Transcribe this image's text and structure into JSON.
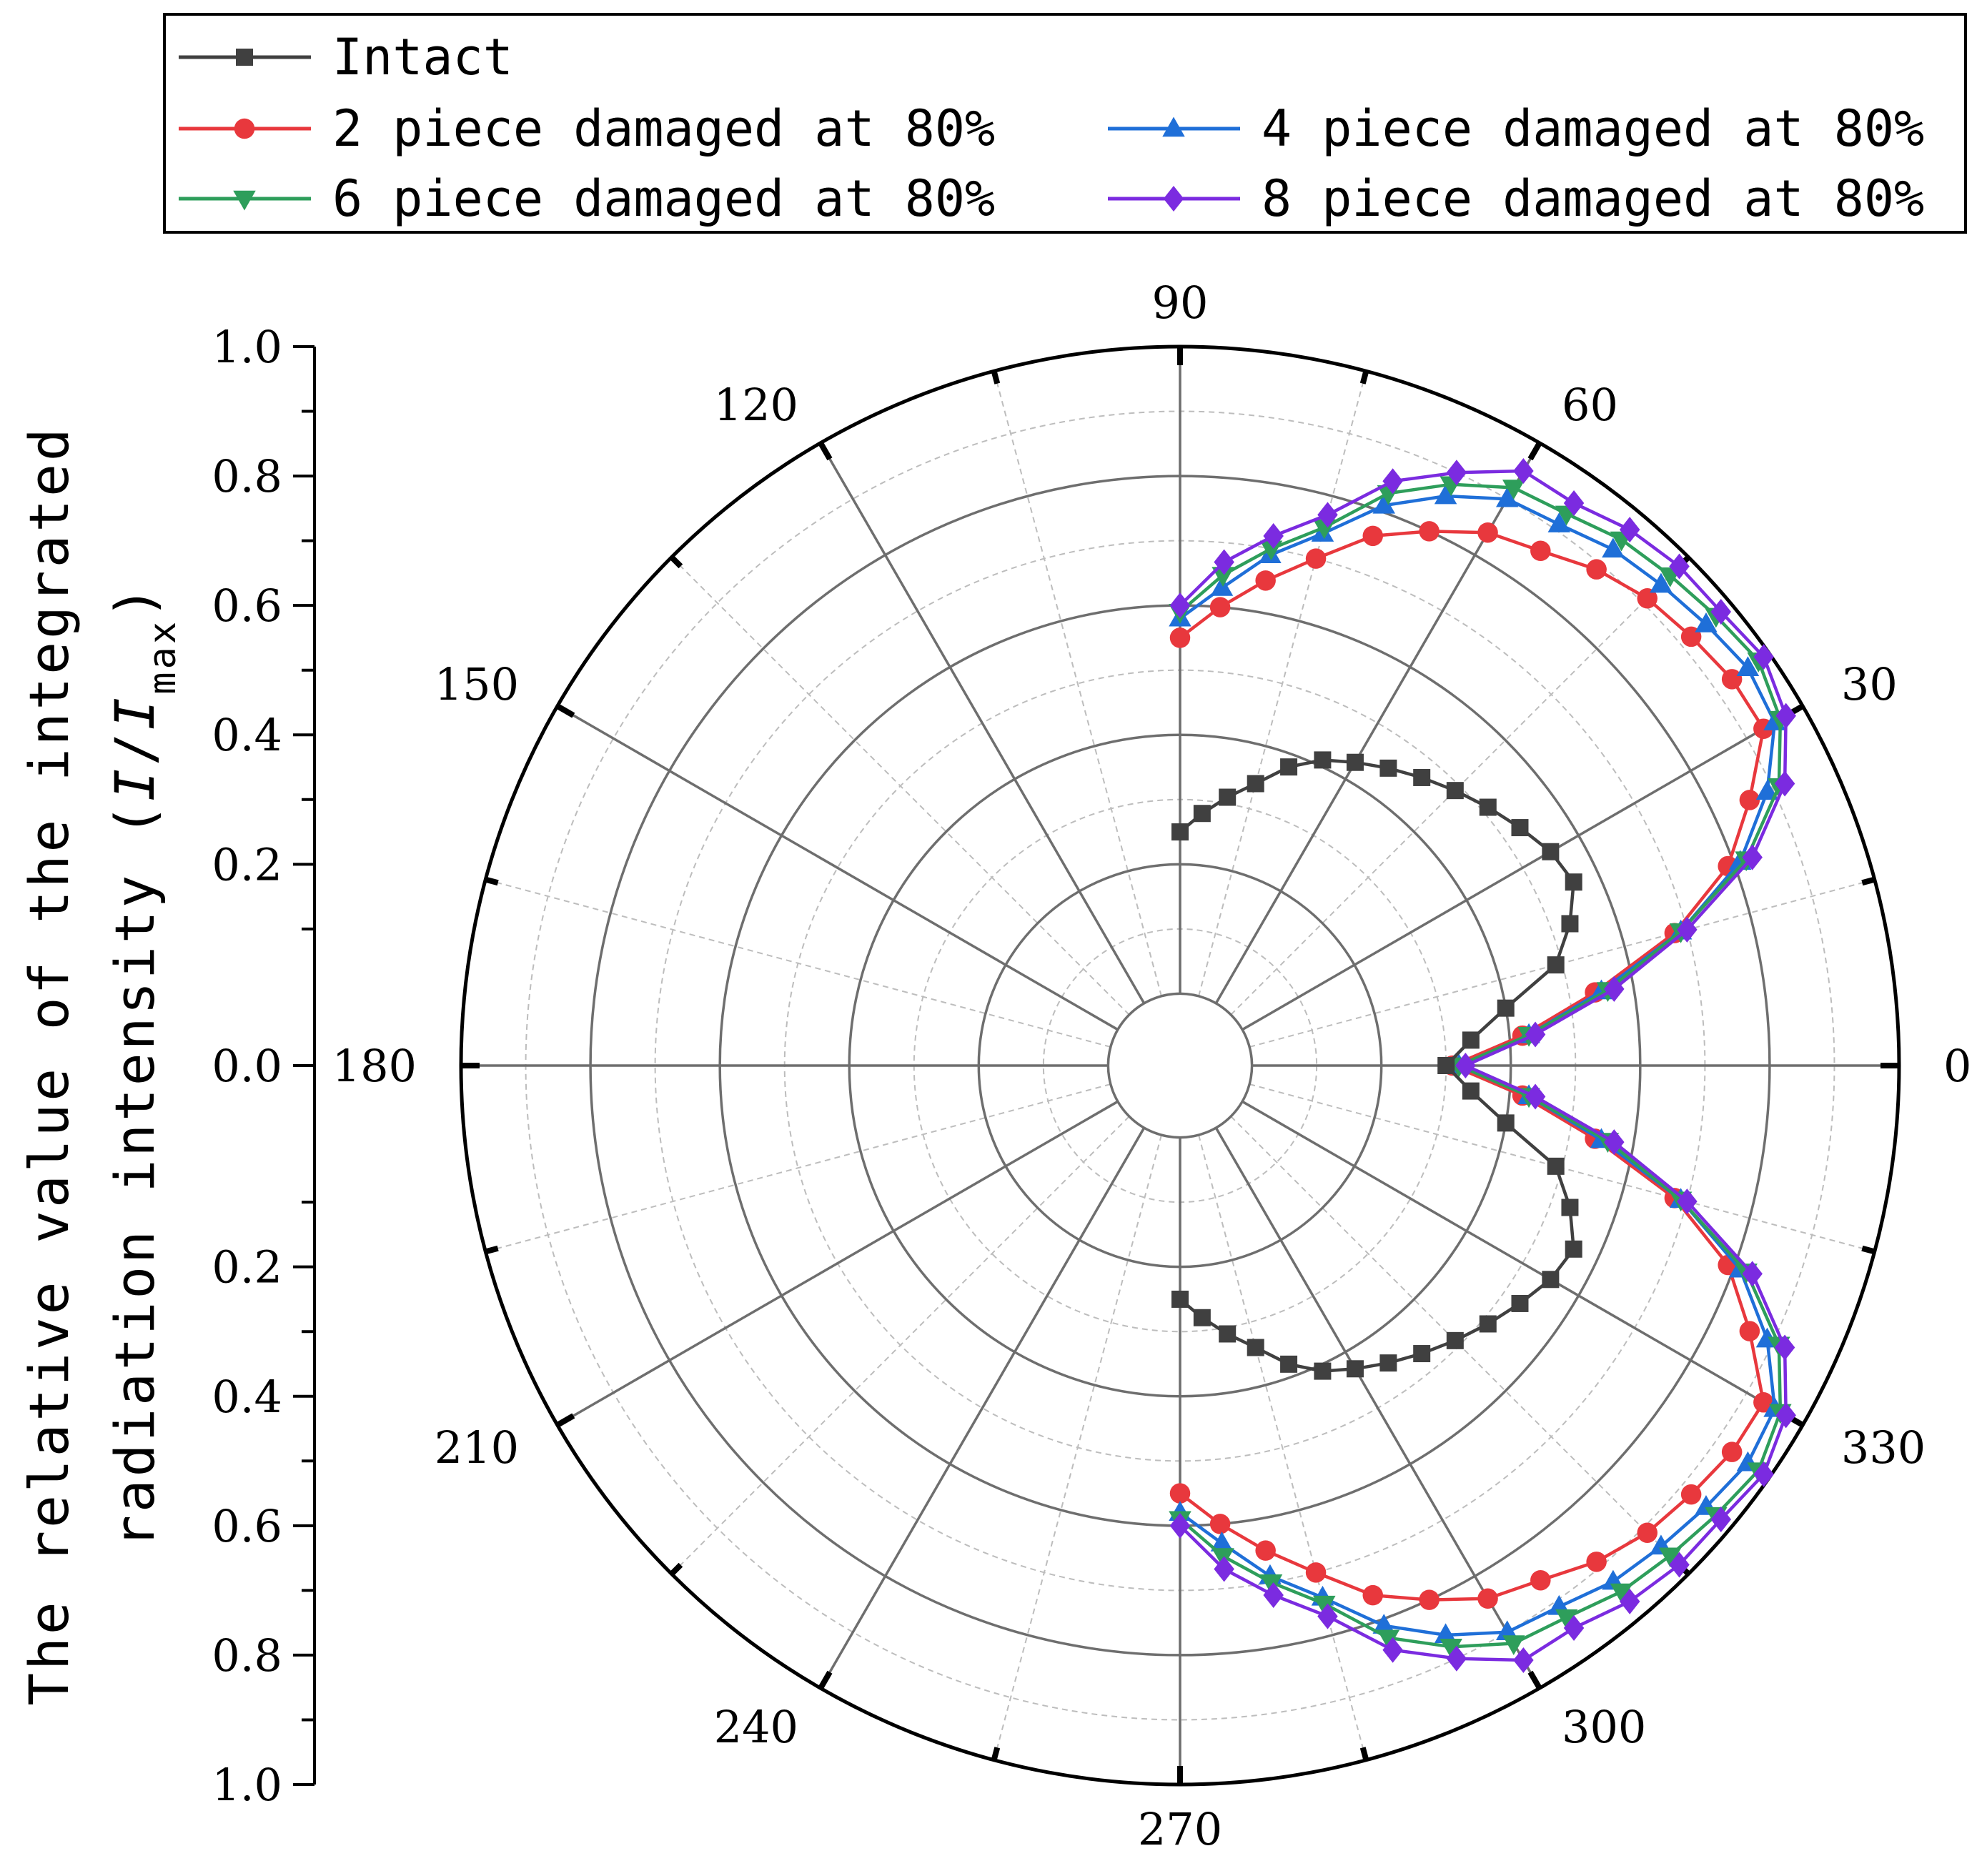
{
  "chart_data": {
    "type": "polar-line",
    "radial_axis": {
      "min": 0.0,
      "max": 1.0,
      "ticks": [
        "1.0",
        "0.8",
        "0.6",
        "0.4",
        "0.2",
        "0.0",
        "0.2",
        "0.4",
        "0.6",
        "0.8",
        "1.0"
      ],
      "title_line1": "The relative value of the integrated",
      "title_line2_prefix": "radiation intensity (",
      "title_I": "I",
      "title_slash": "/",
      "title_Imax": "I",
      "title_max": "max",
      "title_close": ")"
    },
    "angular_axis": {
      "labels": [
        "0",
        "30",
        "60",
        "90",
        "120",
        "150",
        "180",
        "210",
        "240",
        "270",
        "300",
        "330"
      ],
      "grid_step_deg": 30
    },
    "angles_deg": [
      0,
      5,
      10,
      15,
      20,
      25,
      30,
      35,
      40,
      45,
      50,
      55,
      60,
      65,
      70,
      75,
      80,
      85,
      90
    ],
    "series": [
      {
        "name": "Intact",
        "color": "#404040",
        "marker": "square",
        "values": [
          0.3,
          0.34,
          0.4,
          0.49,
          0.53,
          0.56,
          0.55,
          0.53,
          0.51,
          0.49,
          0.47,
          0.45,
          0.43,
          0.41,
          0.38,
          0.34,
          0.31,
          0.28,
          0.25
        ]
      },
      {
        "name": "2 piece damaged at 80%",
        "color": "#E8383D",
        "marker": "circle",
        "values": [
          0.31,
          0.42,
          0.54,
          0.68,
          0.79,
          0.86,
          0.93,
          0.93,
          0.92,
          0.91,
          0.89,
          0.86,
          0.84,
          0.8,
          0.76,
          0.7,
          0.65,
          0.6,
          0.55
        ]
      },
      {
        "name": "4 piece damaged at 80%",
        "color": "#1F6FD8",
        "marker": "triangle-up",
        "values": [
          0.32,
          0.43,
          0.55,
          0.69,
          0.81,
          0.89,
          0.95,
          0.96,
          0.95,
          0.94,
          0.93,
          0.91,
          0.9,
          0.86,
          0.81,
          0.74,
          0.69,
          0.63,
          0.58
        ]
      },
      {
        "name": "6 piece damaged at 80%",
        "color": "#2E9E5B",
        "marker": "triangle-down",
        "values": [
          0.32,
          0.43,
          0.56,
          0.69,
          0.82,
          0.91,
          0.96,
          0.98,
          0.97,
          0.96,
          0.95,
          0.93,
          0.92,
          0.88,
          0.83,
          0.75,
          0.7,
          0.65,
          0.59
        ]
      },
      {
        "name": "8 piece damaged at 80%",
        "color": "#7B2BE0",
        "marker": "diamond",
        "values": [
          0.33,
          0.44,
          0.57,
          0.7,
          0.83,
          0.92,
          0.97,
          0.99,
          0.98,
          0.98,
          0.97,
          0.95,
          0.95,
          0.9,
          0.85,
          0.77,
          0.72,
          0.67,
          0.6
        ]
      }
    ],
    "symmetry": "mirrored about 0 degrees (angles 270-360 mirror 0-90)",
    "legend_placement": "top"
  }
}
